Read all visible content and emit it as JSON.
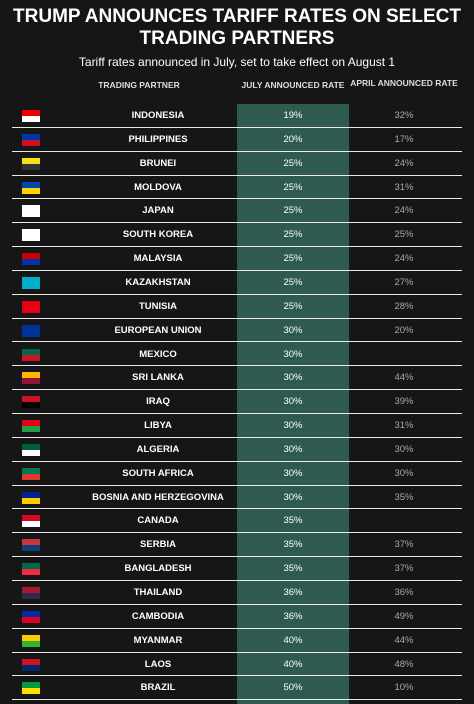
{
  "header": {
    "title": "TRUMP ANNOUNCES TARIFF RATES ON SELECT TRADING PARTNERS",
    "subtitle": "Tariff rates announced in July, set to take effect on August 1"
  },
  "table": {
    "columns": [
      "TRADING PARTNER",
      "JULY ANNOUNCED RATE",
      "APRIL ANNOUNCED RATE"
    ],
    "rows": [
      [
        "INDONESIA",
        "19%",
        "32%"
      ],
      [
        "PHILIPPINES",
        "20%",
        "17%"
      ],
      [
        "BRUNEI",
        "25%",
        "24%"
      ],
      [
        "MOLDOVA",
        "25%",
        "31%"
      ],
      [
        "JAPAN",
        "25%",
        "24%"
      ],
      [
        "SOUTH KOREA",
        "25%",
        "25%"
      ],
      [
        "MALAYSIA",
        "25%",
        "24%"
      ],
      [
        "KAZAKHSTAN",
        "25%",
        "27%"
      ],
      [
        "TUNISIA",
        "25%",
        "28%"
      ],
      [
        "EUROPEAN UNION",
        "30%",
        "20%"
      ],
      [
        "MEXICO",
        "30%",
        null
      ],
      [
        "SRI LANKA",
        "30%",
        "44%"
      ],
      [
        "IRAQ",
        "30%",
        "39%"
      ],
      [
        "LIBYA",
        "30%",
        "31%"
      ],
      [
        "ALGERIA",
        "30%",
        "30%"
      ],
      [
        "SOUTH AFRICA",
        "30%",
        "30%"
      ],
      [
        "BOSNIA AND HERZEGOVINA",
        "30%",
        "35%"
      ],
      [
        "CANADA",
        "35%",
        null
      ],
      [
        "SERBIA",
        "35%",
        "37%"
      ],
      [
        "BANGLADESH",
        "35%",
        "37%"
      ],
      [
        "THAILAND",
        "36%",
        "36%"
      ],
      [
        "CAMBODIA",
        "36%",
        "49%"
      ],
      [
        "MYANMAR",
        "40%",
        "44%"
      ],
      [
        "LAOS",
        "40%",
        "48%"
      ],
      [
        "BRAZIL",
        "50%",
        "10%"
      ]
    ]
  }
}
